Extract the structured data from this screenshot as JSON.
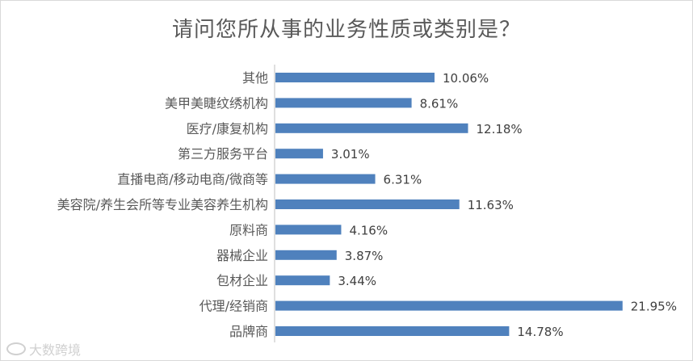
{
  "chart_data": {
    "type": "bar",
    "orientation": "horizontal",
    "title": "请问您所从事的业务性质或类别是？",
    "categories": [
      "其他",
      "美甲美睫纹绣机构",
      "医疗/康复机构",
      "第三方服务平台",
      "直播电商/移动电商/微商等",
      "美容院/养生会所等专业美容养生机构",
      "原料商",
      "器械企业",
      "包材企业",
      "代理/经销商",
      "品牌商"
    ],
    "values": [
      10.06,
      8.61,
      12.18,
      3.01,
      6.31,
      11.63,
      4.16,
      3.87,
      3.44,
      21.95,
      14.78
    ],
    "value_labels": [
      "10.06%",
      "8.61%",
      "12.18%",
      "3.01%",
      "6.31%",
      "11.63%",
      "4.16%",
      "3.87%",
      "3.44%",
      "21.95%",
      "14.78%"
    ],
    "unit": "%",
    "bar_color": "#4f81bd",
    "grid": false,
    "legend": "none"
  },
  "watermark": {
    "text": "大数跨境"
  }
}
